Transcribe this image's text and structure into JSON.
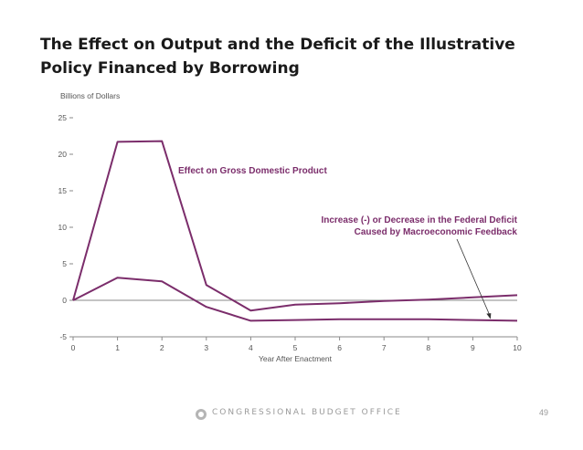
{
  "slide": {
    "title_line1": "The Effect on Output and the Deficit of the Illustrative",
    "title_line2": "Policy Financed by Borrowing"
  },
  "footer": {
    "organization": "CONGRESSIONAL BUDGET OFFICE",
    "page_number": "49"
  },
  "chart_data": {
    "type": "line",
    "units_label": "Billions of Dollars",
    "xlabel": "Year After Enactment",
    "x": [
      0,
      1,
      2,
      3,
      4,
      5,
      6,
      7,
      8,
      9,
      10
    ],
    "xlim": [
      0,
      10
    ],
    "ylim": [
      -5,
      25
    ],
    "yticks": [
      -5,
      0,
      5,
      10,
      15,
      20,
      25
    ],
    "grid": false,
    "zero_line": true,
    "line_color": "#7b2d6b",
    "series": [
      {
        "name": "Effect on Gross Domestic Product",
        "values": [
          0,
          21.7,
          21.8,
          2.1,
          -1.4,
          -0.6,
          -0.4,
          -0.1,
          0.1,
          0.4,
          0.7
        ]
      },
      {
        "name": "Increase (-) or Decrease in the Federal Deficit Caused by Macroeconomic Feedback",
        "name_lines": [
          "Increase (-) or Decrease in the Federal Deficit",
          "Caused by Macroeconomic Feedback"
        ],
        "values": [
          0,
          3.1,
          2.6,
          -0.9,
          -2.8,
          -2.7,
          -2.6,
          -2.6,
          -2.6,
          -2.7,
          -2.8
        ]
      }
    ]
  }
}
